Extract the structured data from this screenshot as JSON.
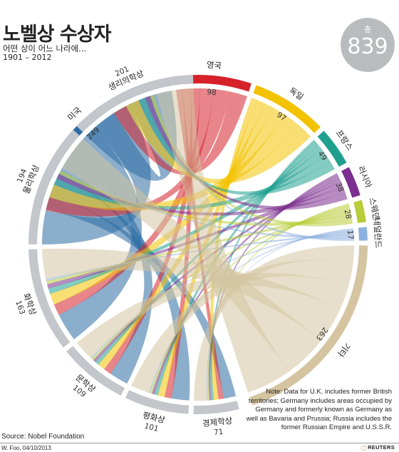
{
  "header": {
    "title": "노벨상 수상자",
    "subtitle": "어떤 상이 어느 나라에...",
    "years": "1901 – 2012"
  },
  "total": {
    "label": "총",
    "value": "839"
  },
  "chart_data": {
    "type": "chord",
    "countries": [
      {
        "name": "미국",
        "value": 249,
        "color": "#2b6ca3"
      },
      {
        "name": "영국",
        "value": 98,
        "color": "#d6212b"
      },
      {
        "name": "독일",
        "value": 97,
        "color": "#f3c200"
      },
      {
        "name": "프랑스",
        "value": 49,
        "color": "#1fa08f"
      },
      {
        "name": "러시아",
        "value": 38,
        "color": "#7b2f8e"
      },
      {
        "name": "스웨덴",
        "value": 28,
        "color": "#b8cd3a"
      },
      {
        "name": "네덜란드",
        "value": 17,
        "color": "#8fb1de"
      },
      {
        "name": "기타",
        "value": 263,
        "color": "#d4c4a0"
      }
    ],
    "prizes": [
      {
        "name": "경제학상",
        "value": 71
      },
      {
        "name": "평화상",
        "value": 101
      },
      {
        "name": "문학상",
        "value": 109
      },
      {
        "name": "화학상",
        "value": 163
      },
      {
        "name": "물리학상",
        "value": 194
      },
      {
        "name": "생리의학상",
        "value": 201
      }
    ],
    "prize_color": "#c3c6ca"
  },
  "note": "Note: Data for U.K. includes former British territories; Germany includes areas occupied by Germany and formerly known as Germany as well as Bavaria and Prussia; Russia includes the former Russian Empire and U.S.S.R.",
  "source": "Source: Nobel Foundation",
  "credit": "W. Foo, 04/10/2013",
  "logo": "REUTERS"
}
